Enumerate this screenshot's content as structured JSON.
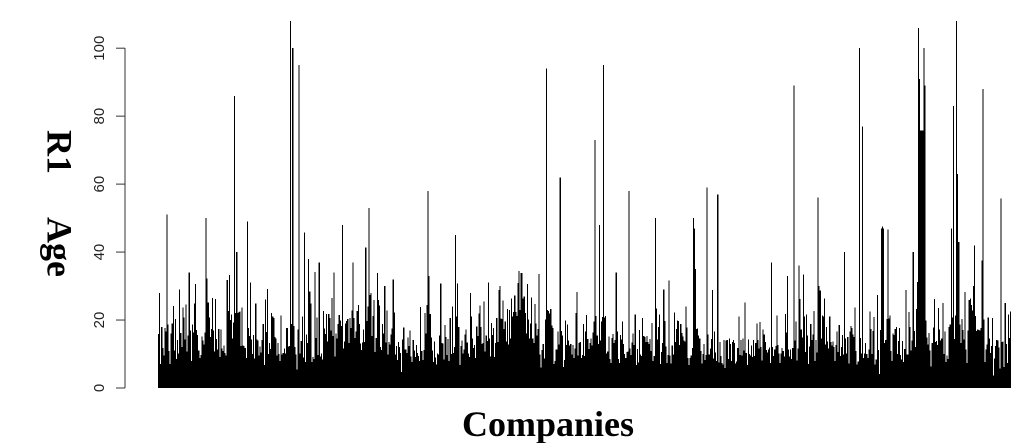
{
  "chart_data": {
    "type": "bar",
    "xlabel": "Companies",
    "ylabel": "R1 Age",
    "ylim": [
      0,
      108
    ],
    "yticks": [
      0,
      20,
      40,
      60,
      80,
      100
    ],
    "x_tick_labels": false,
    "grid": false,
    "legend": "none",
    "bar_color": "#000000",
    "values": [
      15.9,
      28.0,
      7.0,
      17.9,
      11.8,
      9.5,
      17.7,
      16.6,
      51.0,
      18.7,
      10.9,
      7.1,
      16.0,
      19.0,
      24.2,
      11.1,
      20.3,
      8.6,
      14.2,
      10.1,
      29.0,
      16.2,
      12.1,
      23.7,
      20.7,
      14.3,
      24.6,
      10.7,
      15.4,
      34.0,
      16.9,
      8.0,
      18.7,
      16.3,
      24.9,
      30.6,
      17.1,
      15.6,
      11.1,
      8.9,
      9.7,
      15.2,
      14.0,
      12.8,
      16.3,
      50.0,
      32.2,
      25.1,
      20.8,
      15.0,
      17.3,
      26.5,
      16.9,
      10.7,
      26.2,
      14.4,
      11.3,
      17.4,
      9.1,
      17.2,
      11.6,
      10.9,
      12.5,
      10.3,
      9.5,
      31.8,
      22.6,
      33.2,
      20.0,
      21.6,
      14.6,
      19.3,
      86.0,
      22.0,
      40.0,
      22.1,
      22.3,
      22.5,
      12.3,
      23.7,
      12.5,
      12.3,
      11.7,
      8.9,
      49.0,
      17.6,
      15.3,
      31.0,
      14.3,
      10.0,
      15.6,
      8.7,
      24.9,
      14.3,
      14.0,
      9.6,
      12.2,
      10.5,
      14.2,
      18.8,
      6.8,
      26.0,
      16.5,
      29.2,
      10.0,
      13.2,
      11.5,
      22.0,
      21.1,
      20.6,
      15.0,
      14.5,
      9.5,
      13.2,
      10.0,
      8.0,
      21.3,
      9.8,
      10.3,
      11.6,
      10.2,
      17.7,
      17.7,
      12.2,
      12.4,
      108.0,
      18.8,
      100.0,
      18.2,
      12.0,
      9.9,
      5.5,
      17.2,
      95.0,
      10.1,
      13.9,
      21.0,
      9.0,
      45.7,
      7.6,
      15.8,
      13.3,
      38.0,
      28.4,
      24.8,
      7.6,
      9.1,
      8.5,
      34.2,
      14.7,
      20.8,
      9.7,
      37.0,
      9.2,
      10.2,
      8.4,
      22.7,
      17.5,
      15.9,
      21.8,
      13.7,
      21.8,
      20.6,
      16.9,
      26.5,
      15.3,
      34.0,
      9.3,
      16.1,
      14.5,
      18.9,
      21.5,
      19.9,
      18.3,
      48.0,
      11.6,
      13.7,
      19.0,
      19.7,
      20.3,
      13.3,
      20.6,
      17.7,
      22.8,
      37.0,
      20.6,
      14.7,
      16.7,
      22.7,
      24.4,
      18.9,
      13.1,
      11.2,
      13.4,
      17.2,
      13.6,
      41.4,
      19.7,
      24.0,
      53.0,
      27.3,
      28.0,
      15.3,
      21.2,
      25.9,
      10.6,
      14.7,
      33.8,
      25.9,
      24.3,
      12.0,
      11.2,
      18.9,
      16.1,
      30.0,
      13.4,
      22.8,
      9.9,
      13.6,
      12.8,
      15.7,
      17.5,
      32.0,
      22.2,
      9.9,
      12.4,
      8.2,
      13.5,
      12.1,
      10.3,
      4.7,
      14.3,
      17.8,
      11.3,
      11.3,
      10.3,
      14.9,
      12.3,
      16.9,
      9.3,
      7.7,
      14.2,
      11.1,
      9.1,
      12.6,
      10.3,
      9.4,
      7.9,
      23.9,
      10.9,
      8.3,
      11.2,
      22.1,
      16.1,
      24.5,
      58.0,
      33.0,
      21.8,
      14.9,
      11.0,
      7.7,
      13.7,
      9.0,
      6.9,
      10.2,
      9.9,
      15.5,
      30.7,
      13.2,
      13.1,
      8.4,
      18.5,
      15.0,
      9.7,
      14.4,
      7.9,
      20.6,
      10.0,
      24.0,
      10.3,
      12.0,
      45.0,
      21.0,
      30.8,
      18.0,
      6.8,
      12.3,
      14.0,
      10.1,
      11.3,
      15.7,
      17.2,
      13.4,
      10.1,
      9.1,
      27.9,
      21.0,
      14.5,
      11.8,
      12.6,
      8.8,
      18.1,
      15.3,
      21.9,
      24.3,
      17.9,
      12.9,
      13.2,
      25.5,
      10.7,
      15.5,
      13.9,
      31.0,
      14.5,
      9.3,
      19.1,
      15.6,
      17.7,
      9.1,
      13.2,
      20.6,
      13.6,
      28.9,
      30.0,
      20.4,
      20.3,
      25.8,
      17.3,
      19.6,
      13.7,
      23.2,
      12.8,
      22.9,
      14.5,
      26.4,
      21.0,
      22.4,
      27.2,
      22.3,
      21.2,
      30.9,
      34.5,
      22.9,
      33.8,
      33.8,
      26.3,
      26.9,
      22.1,
      16.1,
      30.6,
      20.2,
      14.6,
      19.0,
      26.7,
      14.5,
      13.3,
      24.7,
      19.0,
      15.5,
      17.4,
      33.6,
      9.9,
      6.0,
      11.2,
      12.9,
      8.7,
      20.1,
      94.0,
      22.9,
      22.7,
      21.9,
      23.2,
      18.4,
      17.6,
      7.1,
      8.0,
      11.4,
      11.3,
      16.7,
      12.8,
      62.0,
      16.8,
      15.4,
      6.2,
      8.2,
      19.9,
      12.7,
      18.7,
      14.0,
      12.5,
      13.0,
      9.9,
      12.6,
      8.8,
      11.6,
      22.0,
      28.3,
      9.5,
      13.2,
      13.5,
      8.9,
      9.7,
      18.8,
      9.4,
      16.7,
      21.5,
      14.4,
      11.5,
      13.3,
      14.6,
      12.5,
      16.4,
      19.6,
      73.0,
      21.2,
      15.5,
      12.9,
      48.0,
      14.0,
      19.5,
      20.9,
      95.0,
      20.7,
      21.2,
      10.1,
      10.7,
      15.1,
      8.6,
      7.4,
      14.7,
      15.9,
      13.3,
      14.2,
      34.0,
      16.7,
      8.6,
      7.4,
      15.6,
      14.3,
      19.6,
      13.0,
      10.0,
      8.9,
      10.6,
      10.8,
      58.0,
      11.6,
      9.7,
      13.4,
      16.1,
      12.7,
      21.7,
      6.7,
      11.5,
      7.5,
      17.1,
      9.9,
      9.4,
      20.6,
      15.3,
      15.0,
      13.5,
      15.3,
      13.5,
      13.0,
      14.4,
      10.9,
      19.2,
      8.0,
      9.4,
      50.0,
      23.4,
      14.3,
      17.9,
      21.7,
      7.0,
      10.6,
      13.2,
      29.0,
      19.7,
      12.2,
      7.4,
      9.7,
      31.6,
      9.6,
      7.2,
      12.5,
      9.9,
      22.2,
      13.6,
      17.3,
      19.9,
      19.7,
      12.7,
      18.9,
      16.2,
      15.2,
      14.0,
      13.7,
      24.0,
      17.8,
      8.9,
      6.7,
      8.8,
      9.6,
      11.7,
      50.0,
      47.0,
      35.0,
      17.3,
      17.5,
      15.4,
      14.6,
      10.9,
      7.2,
      10.0,
      13.0,
      8.2,
      9.7,
      59.0,
      15.7,
      9.8,
      11.6,
      14.4,
      28.9,
      8.7,
      16.7,
      10.5,
      8.0,
      57.0,
      7.5,
      13.5,
      9.4,
      7.4,
      6.9,
      14.2,
      5.9,
      14.0,
      14.1,
      8.5,
      14.5,
      12.9,
      7.9,
      13.5,
      14.2,
      13.2,
      7.2,
      7.8,
      11.7,
      21.0,
      9.7,
      14.1,
      9.6,
      14.5,
      11.1,
      25.2,
      10.3,
      6.7,
      14.3,
      10.0,
      9.5,
      12.5,
      9.1,
      14.1,
      9.4,
      13.3,
      19.0,
      14.2,
      11.6,
      19.4,
      12.0,
      8.1,
      17.2,
      15.7,
      13.6,
      11.2,
      10.5,
      11.3,
      11.9,
      7.3,
      37.0,
      12.1,
      9.4,
      11.3,
      12.3,
      21.3,
      12.6,
      10.2,
      7.4,
      10.1,
      11.7,
      10.9,
      9.3,
      21.8,
      16.3,
      33.0,
      11.4,
      9.2,
      11.4,
      8.6,
      11.8,
      89.0,
      14.0,
      19.5,
      8.1,
      11.6,
      36.0,
      26.2,
      17.2,
      14.8,
      33.4,
      21.0,
      10.6,
      21.7,
      15.4,
      7.0,
      12.2,
      18.9,
      14.1,
      15.8,
      22.6,
      8.0,
      14.1,
      10.4,
      56.0,
      30.0,
      28.7,
      14.6,
      21.4,
      21.0,
      26.3,
      12.8,
      17.9,
      13.7,
      11.6,
      21.0,
      13.5,
      12.5,
      13.7,
      12.1,
      7.9,
      12.7,
      16.6,
      10.6,
      18.5,
      9.4,
      12.1,
      15.6,
      9.8,
      40.0,
      14.6,
      10.2,
      15.0,
      7.2,
      16.6,
      18.2,
      17.6,
      15.7,
      15.0,
      23.7,
      10.9,
      6.9,
      7.8,
      100.0,
      14.7,
      10.2,
      77.0,
      8.8,
      10.2,
      13.3,
      10.0,
      8.9,
      11.4,
      22.5,
      17.4,
      10.0,
      16.8,
      20.9,
      6.9,
      8.4,
      27.3,
      11.2,
      4.1,
      17.0,
      47.0,
      47.5,
      46.9,
      13.2,
      14.2,
      20.3,
      46.6,
      20.4,
      21.4,
      10.9,
      8.0,
      16.1,
      15.6,
      17.4,
      17.9,
      10.0,
      13.8,
      17.6,
      9.7,
      8.4,
      13.9,
      7.6,
      11.5,
      28.8,
      9.8,
      9.8,
      22.3,
      18.0,
      11.1,
      14.0,
      40.0,
      16.8,
      12.0,
      23.2,
      31.2,
      106.0,
      91.0,
      75.8,
      75.8,
      75.8,
      100.0,
      89.0,
      19.9,
      14.8,
      12.8,
      16.2,
      11.1,
      6.4,
      13.2,
      17.8,
      26.2,
      13.5,
      13.8,
      12.7,
      23.6,
      17.2,
      14.0,
      14.5,
      25.0,
      10.0,
      16.7,
      7.6,
      9.6,
      8.6,
      17.9,
      18.7,
      47.0,
      20.8,
      83.0,
      14.4,
      21.3,
      108.0,
      63.0,
      43.0,
      18.7,
      13.3,
      20.3,
      17.1,
      14.3,
      28.2,
      11.3,
      7.4,
      16.9,
      25.9,
      26.3,
      24.4,
      22.8,
      30.0,
      42.0,
      21.2,
      16.8,
      17.2,
      17.0,
      16.9,
      17.6,
      37.5,
      88.0,
      20.2,
      7.6,
      11.4,
      12.8,
      20.7,
      14.5,
      10.3,
      12.3,
      20.6,
      3.7,
      8.7,
      12.4,
      14.1,
      14.0,
      11.9,
      5.8,
      55.7,
      13.5,
      13.7,
      6.2,
      25.0,
      12.9,
      7.4,
      21.7,
      14.7,
      22.5
    ]
  }
}
